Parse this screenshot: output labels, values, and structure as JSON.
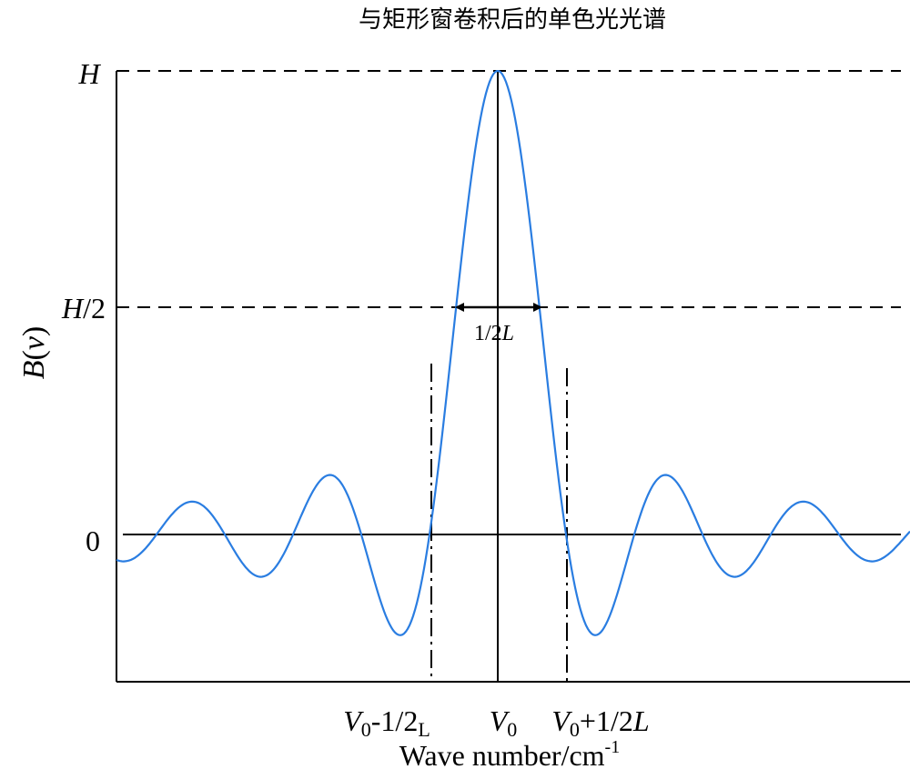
{
  "title": "与矩形窗卷积后的单色光光谱",
  "y_axis": {
    "title": [
      "B",
      "(",
      "v",
      ")"
    ],
    "labels": [
      [
        "H"
      ],
      [
        "H",
        "/2"
      ],
      [
        "0"
      ]
    ]
  },
  "annotation": [
    "1/2",
    "L"
  ],
  "x_axis": {
    "labels": [
      [
        "V",
        "0",
        "-1/2",
        "L"
      ],
      [
        "V",
        "0"
      ],
      [
        "V",
        "0",
        "+1/2",
        "L"
      ]
    ],
    "title": [
      "Wave number/cm",
      "-1"
    ]
  }
}
